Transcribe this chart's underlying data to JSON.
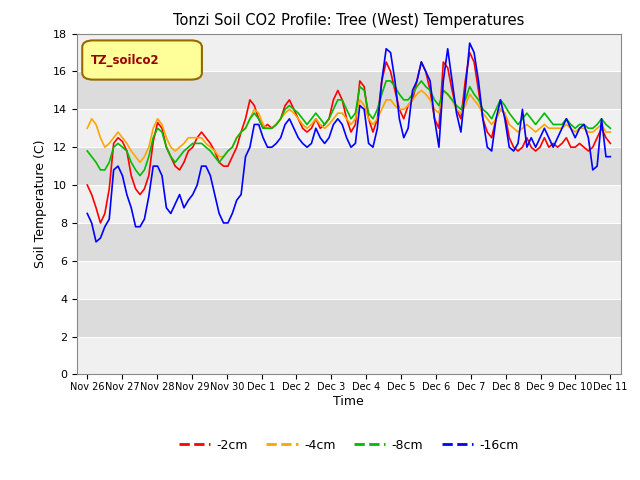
{
  "title": "Tonzi Soil CO2 Profile: Tree (West) Temperatures",
  "xlabel": "Time",
  "ylabel": "Soil Temperature (C)",
  "ylim": [
    0,
    18
  ],
  "yticks": [
    0,
    2,
    4,
    6,
    8,
    10,
    12,
    14,
    16,
    18
  ],
  "legend_label": "TZ_soilco2",
  "series_labels": [
    "-2cm",
    "-4cm",
    "-8cm",
    "-16cm"
  ],
  "series_colors": [
    "#ff0000",
    "#ffa500",
    "#00bb00",
    "#0000ff"
  ],
  "background_color": "#ffffff",
  "plot_bg_light": "#f0f0f0",
  "plot_bg_dark": "#dcdcdc",
  "grid_color": "#ffffff",
  "xtick_labels": [
    "Nov 26",
    "Nov 27",
    "Nov 28",
    "Nov 29",
    "Nov 30",
    "Dec 1",
    "Dec 2",
    "Dec 3",
    "Dec 4",
    "Dec 5",
    "Dec 6",
    "Dec 7",
    "Dec 8",
    "Dec 9",
    "Dec 10",
    "Dec 11"
  ],
  "days": 15,
  "red_2cm": [
    10.0,
    9.5,
    8.8,
    8.0,
    8.5,
    9.8,
    12.2,
    12.5,
    12.3,
    11.8,
    10.5,
    9.8,
    9.5,
    9.8,
    10.5,
    12.3,
    13.3,
    13.0,
    12.0,
    11.5,
    11.0,
    10.8,
    11.2,
    11.8,
    12.0,
    12.5,
    12.8,
    12.5,
    12.2,
    11.8,
    11.2,
    11.0,
    11.0,
    11.5,
    12.0,
    12.8,
    13.5,
    14.5,
    14.2,
    13.5,
    13.0,
    13.2,
    13.0,
    13.2,
    13.5,
    14.2,
    14.5,
    14.0,
    13.5,
    13.0,
    12.8,
    13.0,
    13.5,
    13.0,
    13.2,
    13.5,
    14.5,
    15.0,
    14.5,
    13.5,
    12.8,
    13.2,
    15.5,
    15.2,
    13.5,
    12.8,
    13.5,
    15.5,
    16.5,
    16.0,
    15.0,
    14.0,
    13.5,
    14.2,
    14.5,
    15.5,
    16.5,
    16.0,
    15.0,
    13.5,
    13.0,
    16.5,
    16.2,
    15.0,
    14.0,
    13.5,
    15.5,
    17.0,
    16.5,
    15.0,
    13.5,
    12.8,
    12.5,
    13.5,
    14.0,
    13.8,
    12.5,
    12.0,
    11.8,
    12.0,
    12.5,
    12.0,
    11.8,
    12.0,
    12.5,
    12.0,
    12.2,
    12.0,
    12.2,
    12.5,
    12.0,
    12.0,
    12.2,
    12.0,
    11.8,
    12.0,
    12.5,
    13.0,
    12.5,
    12.2
  ],
  "orange_4cm": [
    13.0,
    13.5,
    13.2,
    12.5,
    12.0,
    12.2,
    12.5,
    12.8,
    12.5,
    12.2,
    11.8,
    11.5,
    11.2,
    11.5,
    12.0,
    13.0,
    13.5,
    13.2,
    12.5,
    12.0,
    11.8,
    12.0,
    12.2,
    12.5,
    12.5,
    12.5,
    12.5,
    12.2,
    12.0,
    11.8,
    11.5,
    11.5,
    11.8,
    12.0,
    12.5,
    12.8,
    13.0,
    13.5,
    14.0,
    13.8,
    13.2,
    13.0,
    13.0,
    13.2,
    13.5,
    13.8,
    14.0,
    13.8,
    13.5,
    13.2,
    13.0,
    13.2,
    13.5,
    13.2,
    13.0,
    13.2,
    13.5,
    13.8,
    13.8,
    13.5,
    13.2,
    13.5,
    14.5,
    14.2,
    13.5,
    13.2,
    13.5,
    14.0,
    14.5,
    14.5,
    14.2,
    14.0,
    14.0,
    14.2,
    14.5,
    14.8,
    15.0,
    14.8,
    14.5,
    14.0,
    13.8,
    15.0,
    14.8,
    14.5,
    14.0,
    13.8,
    14.2,
    14.8,
    14.5,
    14.2,
    13.8,
    13.5,
    13.2,
    13.5,
    14.0,
    13.8,
    13.2,
    13.0,
    12.8,
    13.0,
    13.2,
    13.0,
    12.8,
    13.0,
    13.2,
    13.0,
    13.0,
    13.0,
    13.0,
    13.2,
    13.0,
    12.8,
    13.0,
    13.0,
    12.8,
    12.8,
    13.0,
    13.2,
    12.8,
    12.8
  ],
  "green_8cm": [
    11.8,
    11.5,
    11.2,
    10.8,
    10.8,
    11.2,
    12.0,
    12.2,
    12.0,
    11.8,
    11.2,
    10.8,
    10.5,
    10.8,
    11.5,
    12.5,
    13.0,
    12.8,
    12.0,
    11.5,
    11.2,
    11.5,
    11.8,
    12.0,
    12.2,
    12.2,
    12.2,
    12.0,
    11.8,
    11.5,
    11.2,
    11.5,
    11.8,
    12.0,
    12.5,
    12.8,
    13.0,
    13.5,
    13.8,
    13.5,
    13.0,
    13.0,
    13.0,
    13.2,
    13.5,
    14.0,
    14.2,
    14.0,
    13.8,
    13.5,
    13.2,
    13.5,
    13.8,
    13.5,
    13.2,
    13.5,
    14.0,
    14.5,
    14.5,
    14.0,
    13.5,
    13.8,
    15.2,
    15.0,
    13.8,
    13.5,
    14.0,
    14.8,
    15.5,
    15.5,
    15.2,
    14.8,
    14.5,
    14.5,
    14.8,
    15.2,
    15.5,
    15.2,
    15.0,
    14.5,
    14.2,
    15.0,
    14.8,
    14.5,
    14.2,
    14.0,
    14.5,
    15.2,
    14.8,
    14.5,
    14.0,
    13.8,
    13.5,
    14.0,
    14.5,
    14.2,
    13.8,
    13.5,
    13.2,
    13.5,
    13.8,
    13.5,
    13.2,
    13.5,
    13.8,
    13.5,
    13.2,
    13.2,
    13.2,
    13.5,
    13.2,
    13.0,
    13.2,
    13.2,
    13.0,
    13.0,
    13.2,
    13.5,
    13.2,
    13.0
  ],
  "blue_16cm": [
    8.5,
    8.0,
    7.0,
    7.2,
    7.8,
    8.2,
    10.8,
    11.0,
    10.5,
    9.5,
    8.8,
    7.8,
    7.8,
    8.2,
    9.4,
    11.0,
    11.0,
    10.5,
    8.8,
    8.5,
    9.0,
    9.5,
    8.8,
    9.2,
    9.5,
    10.0,
    11.0,
    11.0,
    10.5,
    9.5,
    8.5,
    8.0,
    8.0,
    8.5,
    9.2,
    9.5,
    11.5,
    12.0,
    13.2,
    13.2,
    12.5,
    12.0,
    12.0,
    12.2,
    12.5,
    13.2,
    13.5,
    13.0,
    12.5,
    12.2,
    12.0,
    12.2,
    13.0,
    12.5,
    12.2,
    12.5,
    13.2,
    13.5,
    13.2,
    12.5,
    12.0,
    12.2,
    14.2,
    14.0,
    12.2,
    12.0,
    13.0,
    15.5,
    17.2,
    17.0,
    15.5,
    13.5,
    12.5,
    13.0,
    15.0,
    15.5,
    16.5,
    16.0,
    15.5,
    13.5,
    12.0,
    15.5,
    17.2,
    15.5,
    13.8,
    12.8,
    15.0,
    17.5,
    17.0,
    15.5,
    13.5,
    12.0,
    11.8,
    13.5,
    14.5,
    13.5,
    12.0,
    11.8,
    12.2,
    14.0,
    12.0,
    12.5,
    12.0,
    12.5,
    13.0,
    12.5,
    12.0,
    12.5,
    13.0,
    13.5,
    13.0,
    12.5,
    13.0,
    13.2,
    12.5,
    10.8,
    11.0,
    13.5,
    11.5,
    11.5
  ]
}
